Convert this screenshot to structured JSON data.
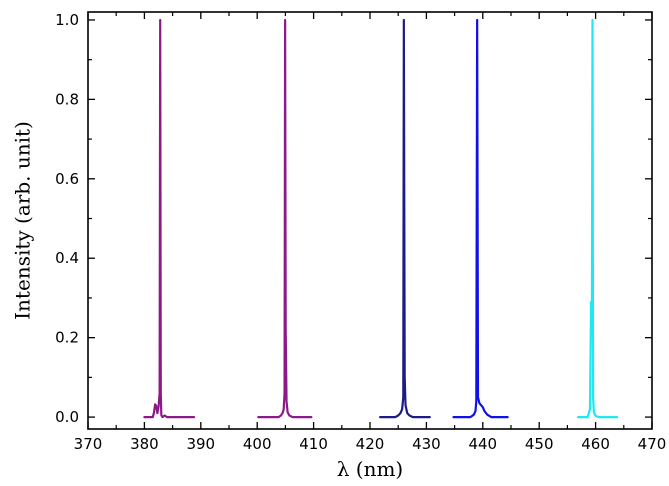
{
  "chart_data": {
    "type": "line",
    "title": "",
    "xlabel": "λ (nm)",
    "ylabel": "Intensity (arb. unit)",
    "xlim": [
      370,
      470
    ],
    "ylim": [
      -0.03,
      1.02
    ],
    "x_ticks": [
      370,
      380,
      390,
      400,
      410,
      420,
      430,
      440,
      450,
      460,
      470
    ],
    "y_ticks": [
      0.0,
      0.2,
      0.4,
      0.6,
      0.8,
      1.0
    ],
    "x_tick_labels": [
      "370",
      "380",
      "390",
      "400",
      "410",
      "420",
      "430",
      "440",
      "450",
      "460",
      "470"
    ],
    "y_tick_labels": [
      "0.0",
      "0.2",
      "0.4",
      "0.6",
      "0.8",
      "1.0"
    ],
    "grid": false,
    "legend": "none",
    "series": [
      {
        "color": "#8b1a89",
        "x": [
          380.0,
          381.5,
          381.7,
          381.9,
          382.1,
          382.3,
          382.5,
          382.7,
          382.8,
          382.9,
          383.0,
          383.2,
          383.6,
          384.0,
          388.8
        ],
        "y": [
          0.0,
          0.0,
          0.012,
          0.032,
          0.028,
          0.01,
          0.025,
          0.06,
          1.0,
          0.06,
          0.005,
          0.0,
          0.004,
          0.0,
          0.0
        ]
      },
      {
        "color": "#8b1a89",
        "x": [
          400.2,
          403.8,
          404.2,
          404.5,
          404.7,
          404.85,
          404.95,
          405.05,
          405.2,
          405.4,
          405.7,
          406.3,
          409.6
        ],
        "y": [
          0.0,
          0.0,
          0.004,
          0.01,
          0.02,
          0.06,
          1.0,
          0.22,
          0.04,
          0.012,
          0.004,
          0.0,
          0.0
        ]
      },
      {
        "color": "#1c1c86",
        "x": [
          421.8,
          424.5,
          425.0,
          425.4,
          425.7,
          425.9,
          426.0,
          426.15,
          426.3,
          426.6,
          427.0,
          427.6,
          430.6
        ],
        "y": [
          0.0,
          0.0,
          0.004,
          0.01,
          0.02,
          0.05,
          1.0,
          0.1,
          0.03,
          0.01,
          0.004,
          0.0,
          0.0
        ]
      },
      {
        "color": "#1010e8",
        "x": [
          434.8,
          437.8,
          438.4,
          438.7,
          438.85,
          439.0,
          439.15,
          439.4,
          439.7,
          440.0,
          440.3,
          440.8,
          441.5,
          444.4
        ],
        "y": [
          0.0,
          0.0,
          0.006,
          0.015,
          0.04,
          1.0,
          0.05,
          0.035,
          0.03,
          0.025,
          0.015,
          0.006,
          0.0,
          0.0
        ]
      },
      {
        "color": "#1ee8f0",
        "x": [
          456.9,
          458.6,
          459.0,
          459.2,
          459.35,
          459.45,
          459.55,
          459.7,
          460.0,
          460.6,
          463.8
        ],
        "y": [
          0.0,
          0.0,
          0.02,
          0.29,
          0.29,
          1.0,
          0.05,
          0.012,
          0.003,
          0.0,
          0.0
        ]
      }
    ]
  }
}
